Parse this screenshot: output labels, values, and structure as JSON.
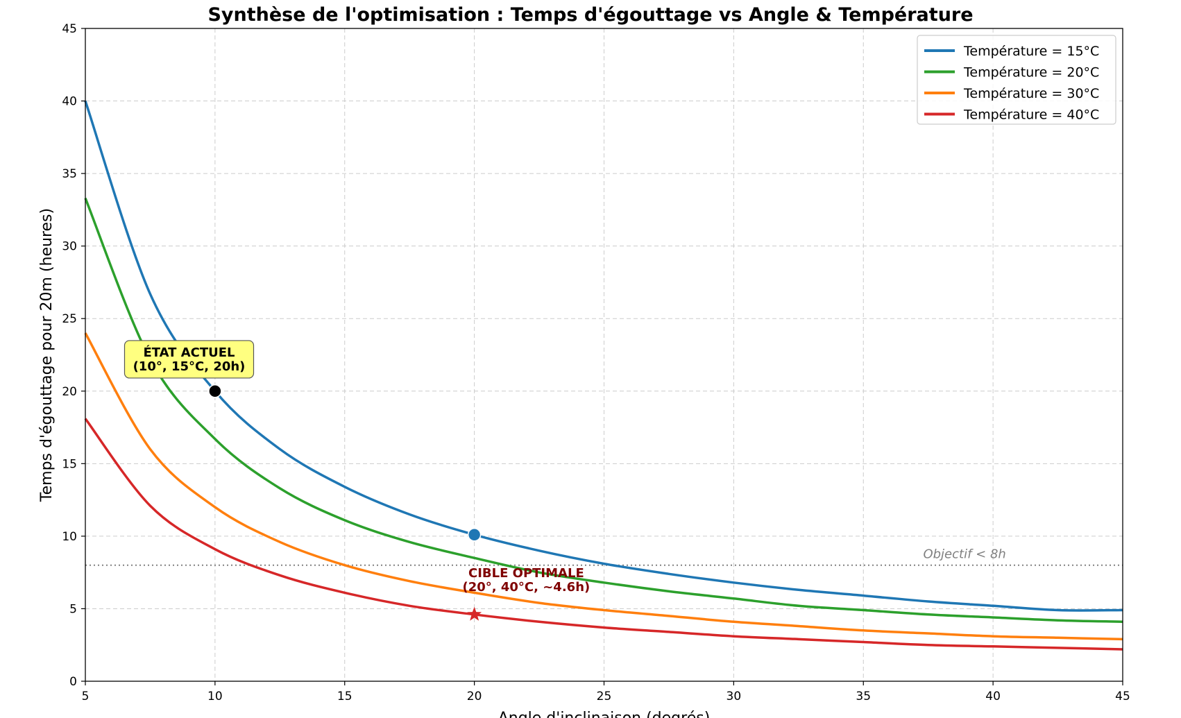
{
  "chart_data": {
    "type": "line",
    "title": "Synthèse de l'optimisation : Temps d'égouttage vs Angle & Température",
    "xlabel": "Angle d'inclinaison (degrés)",
    "ylabel": "Temps d'égouttage pour 20m (heures)",
    "xlim": [
      5,
      45
    ],
    "ylim": [
      0,
      45
    ],
    "xticks": [
      5,
      10,
      15,
      20,
      25,
      30,
      35,
      40,
      45
    ],
    "yticks": [
      0,
      5,
      10,
      15,
      20,
      25,
      30,
      35,
      40,
      45
    ],
    "grid": true,
    "legend_position": "top-right",
    "x": [
      5,
      7.5,
      10,
      12.5,
      15,
      17.5,
      20,
      22.5,
      25,
      27.5,
      30,
      32.5,
      35,
      37.5,
      40,
      42.5,
      45
    ],
    "series": [
      {
        "name": "Température = 15°C",
        "color": "#1f77b4",
        "values": [
          40.0,
          26.7,
          20.0,
          16.0,
          13.4,
          11.5,
          10.1,
          9.0,
          8.1,
          7.4,
          6.8,
          6.3,
          5.9,
          5.5,
          5.2,
          4.9,
          4.9
        ]
      },
      {
        "name": "Température = 20°C",
        "color": "#2ca02c",
        "values": [
          33.3,
          22.2,
          16.7,
          13.3,
          11.1,
          9.6,
          8.5,
          7.5,
          6.8,
          6.2,
          5.7,
          5.2,
          4.9,
          4.6,
          4.4,
          4.2,
          4.1
        ]
      },
      {
        "name": "Température = 30°C",
        "color": "#ff7f0e",
        "values": [
          24.0,
          16.0,
          12.0,
          9.6,
          8.0,
          6.9,
          6.1,
          5.4,
          4.9,
          4.5,
          4.1,
          3.8,
          3.5,
          3.3,
          3.1,
          3.0,
          2.9
        ]
      },
      {
        "name": "Température = 40°C",
        "color": "#d62728",
        "values": [
          18.1,
          12.1,
          9.1,
          7.3,
          6.1,
          5.2,
          4.6,
          4.1,
          3.7,
          3.4,
          3.1,
          2.9,
          2.7,
          2.5,
          2.4,
          2.3,
          2.2
        ]
      }
    ],
    "reference_line": {
      "y": 8,
      "label": "Objectif < 8h",
      "color": "#808080"
    },
    "markers": [
      {
        "x": 10,
        "y": 20,
        "shape": "circle",
        "color": "#000000"
      },
      {
        "x": 20,
        "y": 10.1,
        "shape": "circle",
        "color": "#1f77b4"
      },
      {
        "x": 20,
        "y": 4.6,
        "shape": "star",
        "color": "#d62728"
      }
    ],
    "annotations": [
      {
        "id": "etat-actuel",
        "line1": "ÉTAT ACTUEL",
        "line2": "(10°, 15°C, 20h)",
        "x": 9.0,
        "y": 22.0,
        "box_color": "#ffff80",
        "text_color": "#000000"
      },
      {
        "id": "cible-optimale",
        "line1": "CIBLE OPTIMALE",
        "line2": "(20°, 40°C, ~4.6h)",
        "x": 22.0,
        "y": 6.8,
        "text_color": "#7f0000"
      }
    ]
  }
}
